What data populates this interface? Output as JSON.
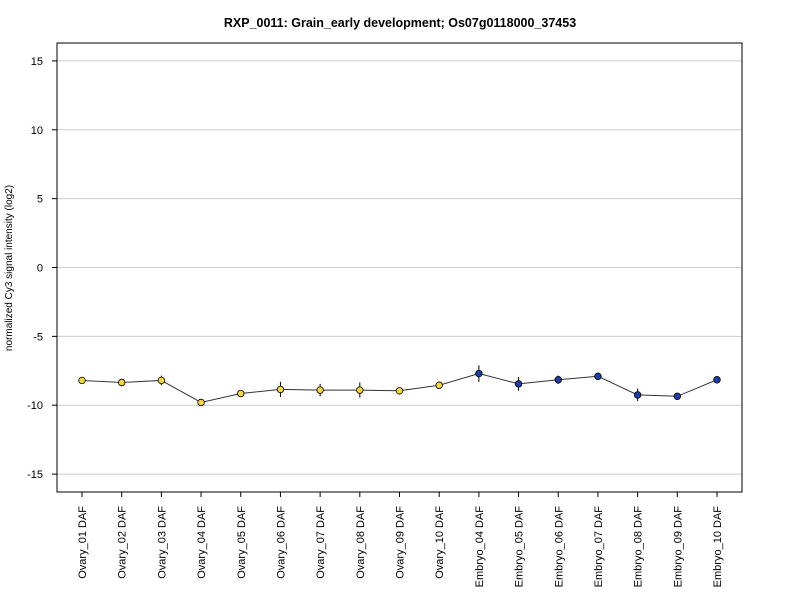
{
  "chart_data": {
    "type": "line",
    "title": "RXP_0011: Grain_early development; Os07g0118000_37453",
    "xlabel": "",
    "ylabel": "normalized Cy3 signal intensity (log2)",
    "ylim": [
      -16.3,
      16.3
    ],
    "yticks": [
      -15,
      -10,
      -5,
      0,
      5,
      10,
      15
    ],
    "grid": true,
    "categories": [
      "Ovary_01 DAF",
      "Ovary_02 DAF",
      "Ovary_03 DAF",
      "Ovary_04 DAF",
      "Ovary_05 DAF",
      "Ovary_06 DAF",
      "Ovary_07 DAF",
      "Ovary_08 DAF",
      "Ovary_09 DAF",
      "Ovary_10 DAF",
      "Embryo_04 DAF",
      "Embryo_05 DAF",
      "Embryo_06 DAF",
      "Embryo_07 DAF",
      "Embryo_08 DAF",
      "Embryo_09 DAF",
      "Embryo_10 DAF"
    ],
    "values": [
      -8.2,
      -8.35,
      -8.2,
      -9.8,
      -9.15,
      -8.85,
      -8.9,
      -8.9,
      -8.95,
      -8.55,
      -7.7,
      -8.45,
      -8.15,
      -7.9,
      -9.25,
      -9.35,
      -8.15
    ],
    "error": [
      0.25,
      0.2,
      0.35,
      0.2,
      0.2,
      0.55,
      0.45,
      0.55,
      0.2,
      0.2,
      0.6,
      0.5,
      0.3,
      0.15,
      0.45,
      0.15,
      0.2
    ],
    "point_colors": [
      "#f5d547",
      "#f5d547",
      "#f5d547",
      "#f5d547",
      "#f5d547",
      "#f5d547",
      "#f5d547",
      "#f5d547",
      "#f5d547",
      "#f5d547",
      "#1a3fa8",
      "#1a3fa8",
      "#1a3fa8",
      "#1a3fa8",
      "#1a3fa8",
      "#1a3fa8",
      "#1a3fa8"
    ],
    "line_color": "#333333",
    "grid_color": "#cccccc"
  }
}
